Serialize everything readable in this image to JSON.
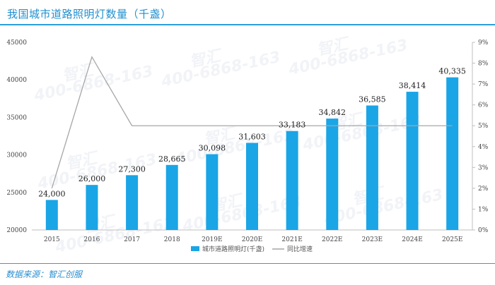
{
  "header": {
    "title": "我国城市道路照明灯数量（千盏）"
  },
  "footer": {
    "source": "数据来源：智汇创服"
  },
  "watermark": {
    "brand": "智汇",
    "phone": "400-6868-163"
  },
  "colors": {
    "bar": "#1aa5e6",
    "line": "#a6a6a6",
    "accent": "#2ba0dc"
  },
  "chart_data": {
    "type": "bar",
    "categories": [
      "2015",
      "2016",
      "2017",
      "2018",
      "2019E",
      "2020E",
      "2021E",
      "2022E",
      "2023E",
      "2024E",
      "2025E"
    ],
    "series": [
      {
        "name": "城市道路照明灯(千盏)",
        "type": "bar",
        "axis": "left",
        "values": [
          24000,
          26000,
          27300,
          28665,
          30098,
          31603,
          33183,
          34842,
          36585,
          38414,
          40335
        ],
        "labels": [
          "24,000",
          "26,000",
          "27,300",
          "28,665",
          "30,098",
          "31,603",
          "33,183",
          "34,842",
          "36,585",
          "38,414",
          "40,335"
        ]
      },
      {
        "name": "同比增速",
        "type": "line",
        "axis": "right",
        "values": [
          2.0,
          8.3,
          5.0,
          5.0,
          5.0,
          5.0,
          5.0,
          5.0,
          5.0,
          5.0,
          5.0
        ]
      }
    ],
    "y_left": {
      "ylim": [
        20000,
        45000
      ],
      "ticks": [
        "20000",
        "25000",
        "30000",
        "35000",
        "40000",
        "45000"
      ]
    },
    "y_right": {
      "ylim": [
        0,
        9
      ],
      "unit": "%",
      "ticks": [
        "0%",
        "1%",
        "2%",
        "3%",
        "4%",
        "5%",
        "6%",
        "7%",
        "8%",
        "9%"
      ]
    },
    "legend": "bottom-center",
    "grid": false
  }
}
